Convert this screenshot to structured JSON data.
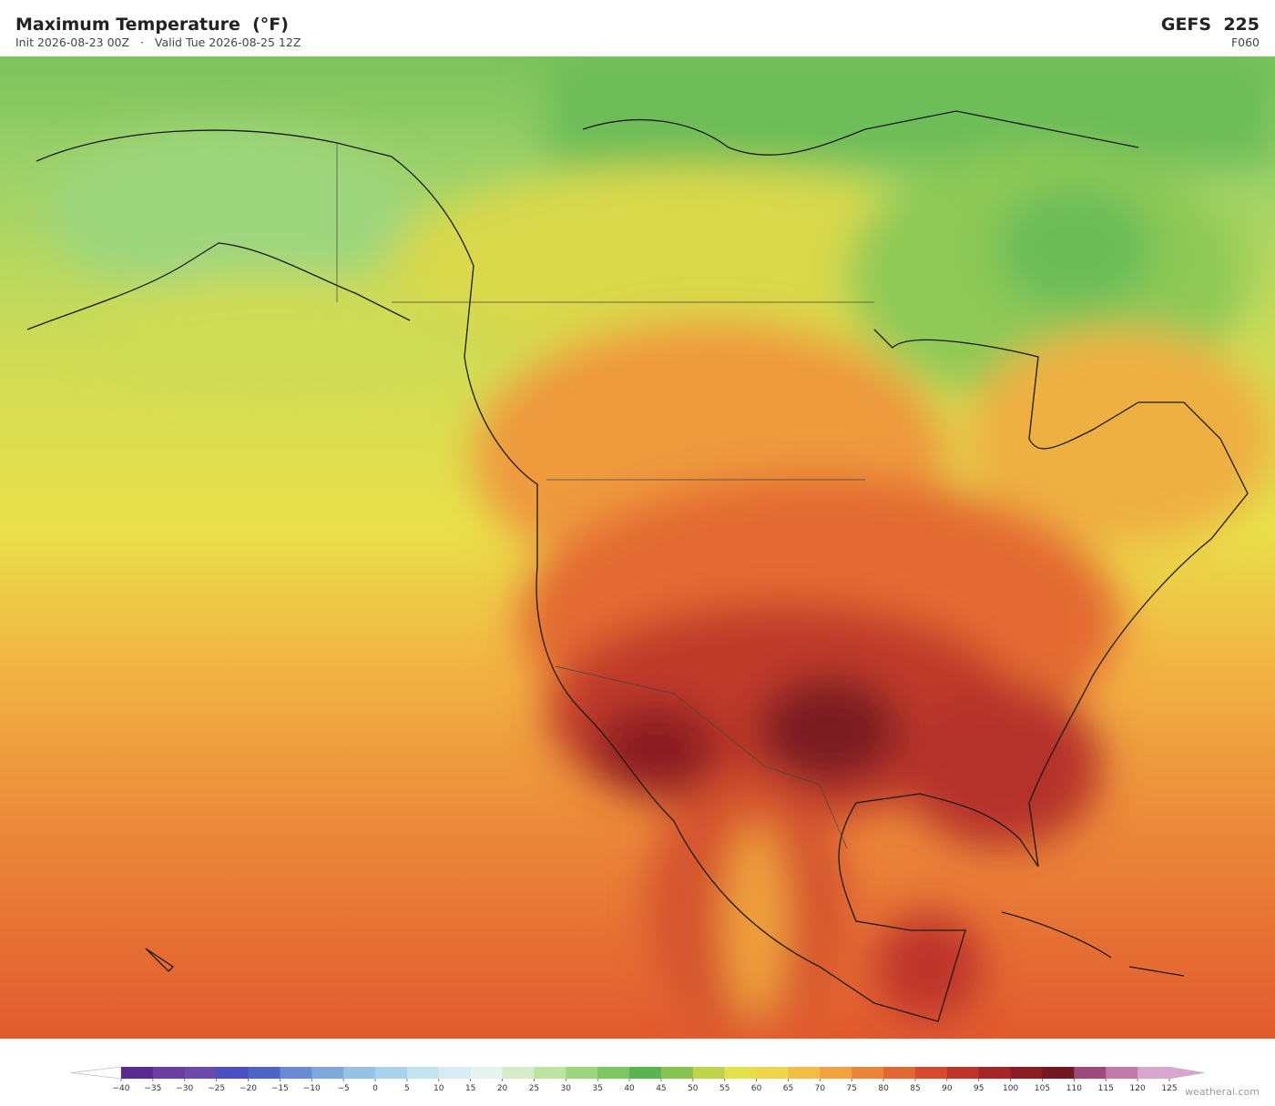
{
  "header": {
    "title": "Maximum Temperature  (°F)",
    "init": "Init 2026-08-23 00Z",
    "separator": "·",
    "valid": "Valid Tue 2026-08-25 12Z",
    "model": "GEFS  225",
    "forecast_hour": "F060"
  },
  "colorbar": {
    "range": [
      -40,
      125
    ],
    "ticks": [
      {
        "value": -40,
        "label": "−40"
      },
      {
        "value": -35,
        "label": "−35"
      },
      {
        "value": -30,
        "label": "−30"
      },
      {
        "value": -25,
        "label": "−25"
      },
      {
        "value": -20,
        "label": "−20"
      },
      {
        "value": -15,
        "label": "−15"
      },
      {
        "value": -10,
        "label": "−10"
      },
      {
        "value": -5,
        "label": "−5"
      },
      0,
      5,
      10,
      15,
      20,
      25,
      30,
      35,
      40,
      45,
      50,
      55,
      60,
      65,
      70,
      75,
      80,
      85,
      90,
      95,
      100,
      105,
      110,
      115,
      120,
      125
    ],
    "colors": [
      "#5b2a91",
      "#6a3ea0",
      "#6c4aab",
      "#4b4fbf",
      "#4c63c8",
      "#6a8ad2",
      "#7ea7db",
      "#98c2e4",
      "#a9d3ec",
      "#c3e3f1",
      "#d7ecf4",
      "#e6f4ef",
      "#d6ecc8",
      "#bde3a0",
      "#9ed67e",
      "#7dc763",
      "#5bb452",
      "#86c34f",
      "#bfd44a",
      "#e3e04a",
      "#f0d44a",
      "#f2bd45",
      "#f0a23d",
      "#ea853a",
      "#e36734",
      "#d44b2e",
      "#be342a",
      "#a52627",
      "#8c1c24",
      "#741722",
      "#9b4a7a",
      "#c07aaa",
      "#d9a6cf"
    ],
    "under_color": "#ffffff",
    "over_color": "#d9a6cf"
  },
  "credit": "weatherai.com"
}
